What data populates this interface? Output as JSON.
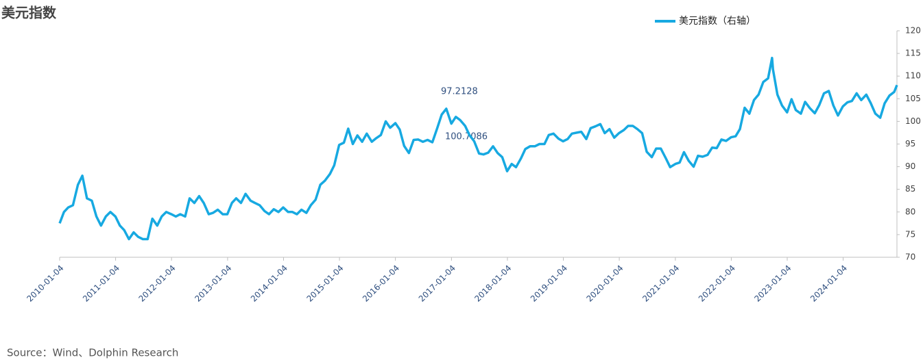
{
  "chart_data": {
    "type": "line",
    "title": "美元指数",
    "source": "Source：Wind、Dolphin  Research",
    "annotations": [
      "97.2128",
      "100.7086"
    ],
    "x": [
      "2010-01-04",
      "2010-02-01",
      "2010-03-01",
      "2010-04-01",
      "2010-05-03",
      "2010-06-01",
      "2010-07-01",
      "2010-08-02",
      "2010-09-01",
      "2010-10-01",
      "2010-11-01",
      "2010-12-01",
      "2011-01-03",
      "2011-02-01",
      "2011-03-01",
      "2011-04-01",
      "2011-05-02",
      "2011-06-01",
      "2011-07-01",
      "2011-08-01",
      "2011-09-01",
      "2011-10-03",
      "2011-11-01",
      "2011-12-01",
      "2012-01-03",
      "2012-02-01",
      "2012-03-01",
      "2012-04-02",
      "2012-05-01",
      "2012-06-01",
      "2012-07-02",
      "2012-08-01",
      "2012-09-03",
      "2012-10-01",
      "2012-11-01",
      "2012-12-03",
      "2013-01-02",
      "2013-02-01",
      "2013-03-01",
      "2013-04-01",
      "2013-05-01",
      "2013-06-03",
      "2013-07-01",
      "2013-08-01",
      "2013-09-02",
      "2013-10-01",
      "2013-11-01",
      "2013-12-02",
      "2014-01-02",
      "2014-02-03",
      "2014-03-03",
      "2014-04-01",
      "2014-05-01",
      "2014-06-02",
      "2014-07-01",
      "2014-08-01",
      "2014-09-01",
      "2014-10-01",
      "2014-11-03",
      "2014-12-01",
      "2015-01-02",
      "2015-02-02",
      "2015-03-02",
      "2015-04-01",
      "2015-05-01",
      "2015-06-01",
      "2015-07-01",
      "2015-08-03",
      "2015-09-01",
      "2015-10-01",
      "2015-11-02",
      "2015-12-01",
      "2016-01-04",
      "2016-02-01",
      "2016-03-01",
      "2016-04-01",
      "2016-05-02",
      "2016-06-01",
      "2016-07-01",
      "2016-08-01",
      "2016-09-01",
      "2016-10-03",
      "2016-11-01",
      "2016-12-01",
      "2017-01-03",
      "2017-02-01",
      "2017-03-01",
      "2017-04-03",
      "2017-05-01",
      "2017-06-01",
      "2017-07-03",
      "2017-08-01",
      "2017-09-01",
      "2017-10-02",
      "2017-11-01",
      "2017-12-01",
      "2018-01-02",
      "2018-02-01",
      "2018-03-01",
      "2018-04-02",
      "2018-05-01",
      "2018-06-01",
      "2018-07-02",
      "2018-08-01",
      "2018-09-03",
      "2018-10-01",
      "2018-11-01",
      "2018-12-03",
      "2019-01-02",
      "2019-02-01",
      "2019-03-01",
      "2019-04-01",
      "2019-05-01",
      "2019-06-03",
      "2019-07-01",
      "2019-08-01",
      "2019-09-02",
      "2019-10-01",
      "2019-11-01",
      "2019-12-02",
      "2020-01-02",
      "2020-02-03",
      "2020-03-02",
      "2020-04-01",
      "2020-05-01",
      "2020-06-01",
      "2020-07-01",
      "2020-08-03",
      "2020-09-01",
      "2020-10-01",
      "2020-11-02",
      "2020-12-01",
      "2021-01-04",
      "2021-02-01",
      "2021-03-01",
      "2021-04-01",
      "2021-05-03",
      "2021-06-01",
      "2021-07-01",
      "2021-08-02",
      "2021-09-01",
      "2021-10-01",
      "2021-11-01",
      "2021-12-01",
      "2022-01-03",
      "2022-02-01",
      "2022-03-01",
      "2022-04-01",
      "2022-05-02",
      "2022-06-01",
      "2022-07-01",
      "2022-08-01",
      "2022-09-01",
      "2022-09-27",
      "2022-10-03",
      "2022-11-01",
      "2022-12-01",
      "2023-01-03",
      "2023-02-01",
      "2023-03-01",
      "2023-04-03",
      "2023-05-01",
      "2023-06-01",
      "2023-07-03",
      "2023-08-01",
      "2023-09-01",
      "2023-10-02",
      "2023-11-01",
      "2023-12-01",
      "2024-01-02",
      "2024-02-01",
      "2024-03-01",
      "2024-04-01",
      "2024-05-01",
      "2024-06-03",
      "2024-07-01",
      "2024-08-01",
      "2024-09-02",
      "2024-10-01",
      "2024-11-01",
      "2024-12-02",
      "2024-12-20"
    ],
    "series": [
      {
        "name": "美元指数（右轴）",
        "color": "#17a9e1",
        "axis": "y2",
        "values": [
          77.5,
          80,
          81,
          81.5,
          86,
          88,
          83,
          82.5,
          79,
          77,
          79,
          80,
          79,
          77,
          76,
          74,
          75.5,
          74.5,
          74,
          74,
          78.5,
          77,
          79,
          80,
          79.5,
          79,
          79.5,
          79,
          83,
          82,
          83.5,
          82,
          79.5,
          79.8,
          80.5,
          79.5,
          79.5,
          82,
          83,
          82,
          84,
          82.5,
          82,
          81.5,
          80.2,
          79.5,
          80.6,
          80,
          81,
          80,
          80,
          79.5,
          80.5,
          79.8,
          81.5,
          82.7,
          86,
          86.9,
          88.4,
          90.3,
          94.8,
          95.3,
          98.4,
          95,
          96.9,
          95.5,
          97.3,
          95.5,
          96.3,
          97,
          100,
          98.6,
          99.6,
          98.2,
          94.6,
          93,
          95.9,
          96,
          95.5,
          95.9,
          95.4,
          98.5,
          101.5,
          102.8,
          99.5,
          101,
          100.3,
          99,
          97,
          95.6,
          92.9,
          92.7,
          93.1,
          94.5,
          93,
          92.1,
          89,
          90.6,
          89.9,
          91.8,
          93.9,
          94.5,
          94.5,
          95,
          95,
          97,
          97.3,
          96.2,
          95.6,
          96.1,
          97.3,
          97.5,
          97.7,
          96.1,
          98.5,
          98.9,
          99.4,
          97.4,
          98.3,
          96.4,
          97.4,
          98.1,
          99,
          99,
          98.3,
          97.4,
          93.3,
          92.1,
          94,
          94,
          91.9,
          89.9,
          90.6,
          90.9,
          93.2,
          91.3,
          90,
          92.4,
          92.2,
          92.6,
          94.2,
          94.1,
          96,
          95.7,
          96.5,
          96.7,
          98.3,
          103,
          101.7,
          104.7,
          105.9,
          108.7,
          109.5,
          114,
          111.5,
          105.9,
          103.5,
          102,
          104.9,
          102.5,
          101.7,
          104.3,
          102.9,
          101.8,
          103.6,
          106.2,
          106.7,
          103.5,
          101.3,
          103.3,
          104.2,
          104.5,
          106.2,
          104.7,
          105.9,
          104.1,
          101.7,
          100.8,
          104,
          105.7,
          106.5,
          108
        ]
      }
    ],
    "xlim": [
      "2010-01-04",
      "2024-12-20"
    ],
    "xticks": [
      "2010-01-04",
      "2011-01-04",
      "2012-01-04",
      "2013-01-04",
      "2014-01-04",
      "2015-01-04",
      "2016-01-04",
      "2017-01-04",
      "2018-01-04",
      "2019-01-04",
      "2020-01-04",
      "2021-01-04",
      "2022-01-04",
      "2023-01-04",
      "2024-01-04"
    ],
    "y2lim": [
      70,
      120
    ],
    "y2ticks": [
      70,
      75,
      80,
      85,
      90,
      95,
      100,
      105,
      110,
      115,
      120
    ]
  }
}
